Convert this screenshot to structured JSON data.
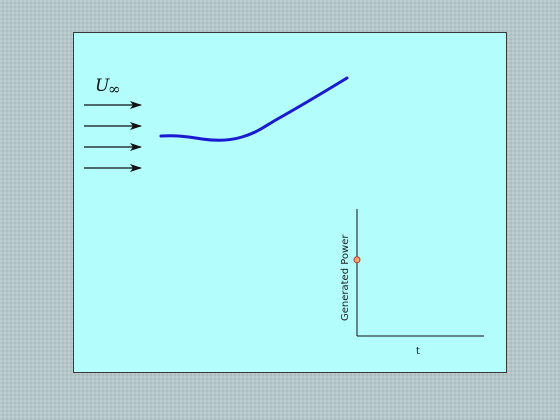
{
  "diagram": {
    "freestream_label": "U",
    "freestream_subscript": "∞",
    "flow_arrow_count": 4,
    "colors": {
      "panel_background": "#b3fdfd",
      "blade": "#1a1ad0",
      "arrow": "#111111",
      "axis": "#111111",
      "marker_fill": "#f4a37a",
      "marker_stroke": "#c03020"
    }
  },
  "power_plot": {
    "ylabel": "Generated Power",
    "xlabel": "t",
    "current_point": {
      "t": 0,
      "power": 0.6
    },
    "ylim": [
      0,
      1
    ],
    "xlim": [
      0,
      1
    ]
  }
}
